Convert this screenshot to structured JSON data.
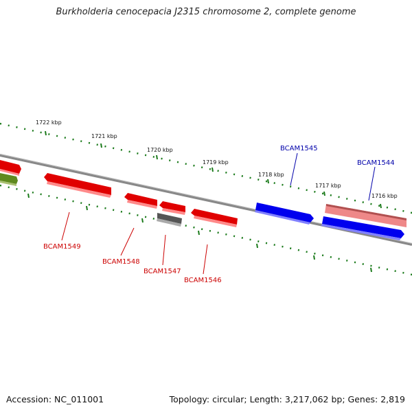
{
  "title": "Burkholderia cenocepacia J2315 chromosome 2, complete genome",
  "footer": {
    "accession": "Accession: NC_011001",
    "summary": "Topology: circular; Length: 3,217,062 bp; Genes: 2,819"
  },
  "scale_labels": [
    "1722 kbp",
    "1721 kbp",
    "1720 kbp",
    "1719 kbp",
    "1718 kbp",
    "1717 kbp",
    "1716 kbp"
  ],
  "genes": [
    {
      "label": "BCAM1549",
      "color": "#dd0000",
      "label_color": "#cc0000"
    },
    {
      "label": "BCAM1548",
      "color": "#dd0000",
      "label_color": "#cc0000"
    },
    {
      "label": "BCAM1547",
      "color": "#dd0000",
      "label_color": "#cc0000"
    },
    {
      "label": "BCAM1546",
      "color": "#dd0000",
      "label_color": "#cc0000"
    },
    {
      "label": "BCAM1545",
      "color": "#0000dd",
      "label_color": "#0000aa"
    },
    {
      "label": "BCAM1544",
      "color": "#0000dd",
      "label_color": "#0000aa"
    }
  ],
  "colors": {
    "backbone": "#888888",
    "tick": "#1a7a1a",
    "forward_strand": "#0000ee",
    "reverse_strand": "#ee0000",
    "pseudo": "#555555",
    "rrna_like": "#ee8888",
    "other": "#5f8a1e"
  }
}
